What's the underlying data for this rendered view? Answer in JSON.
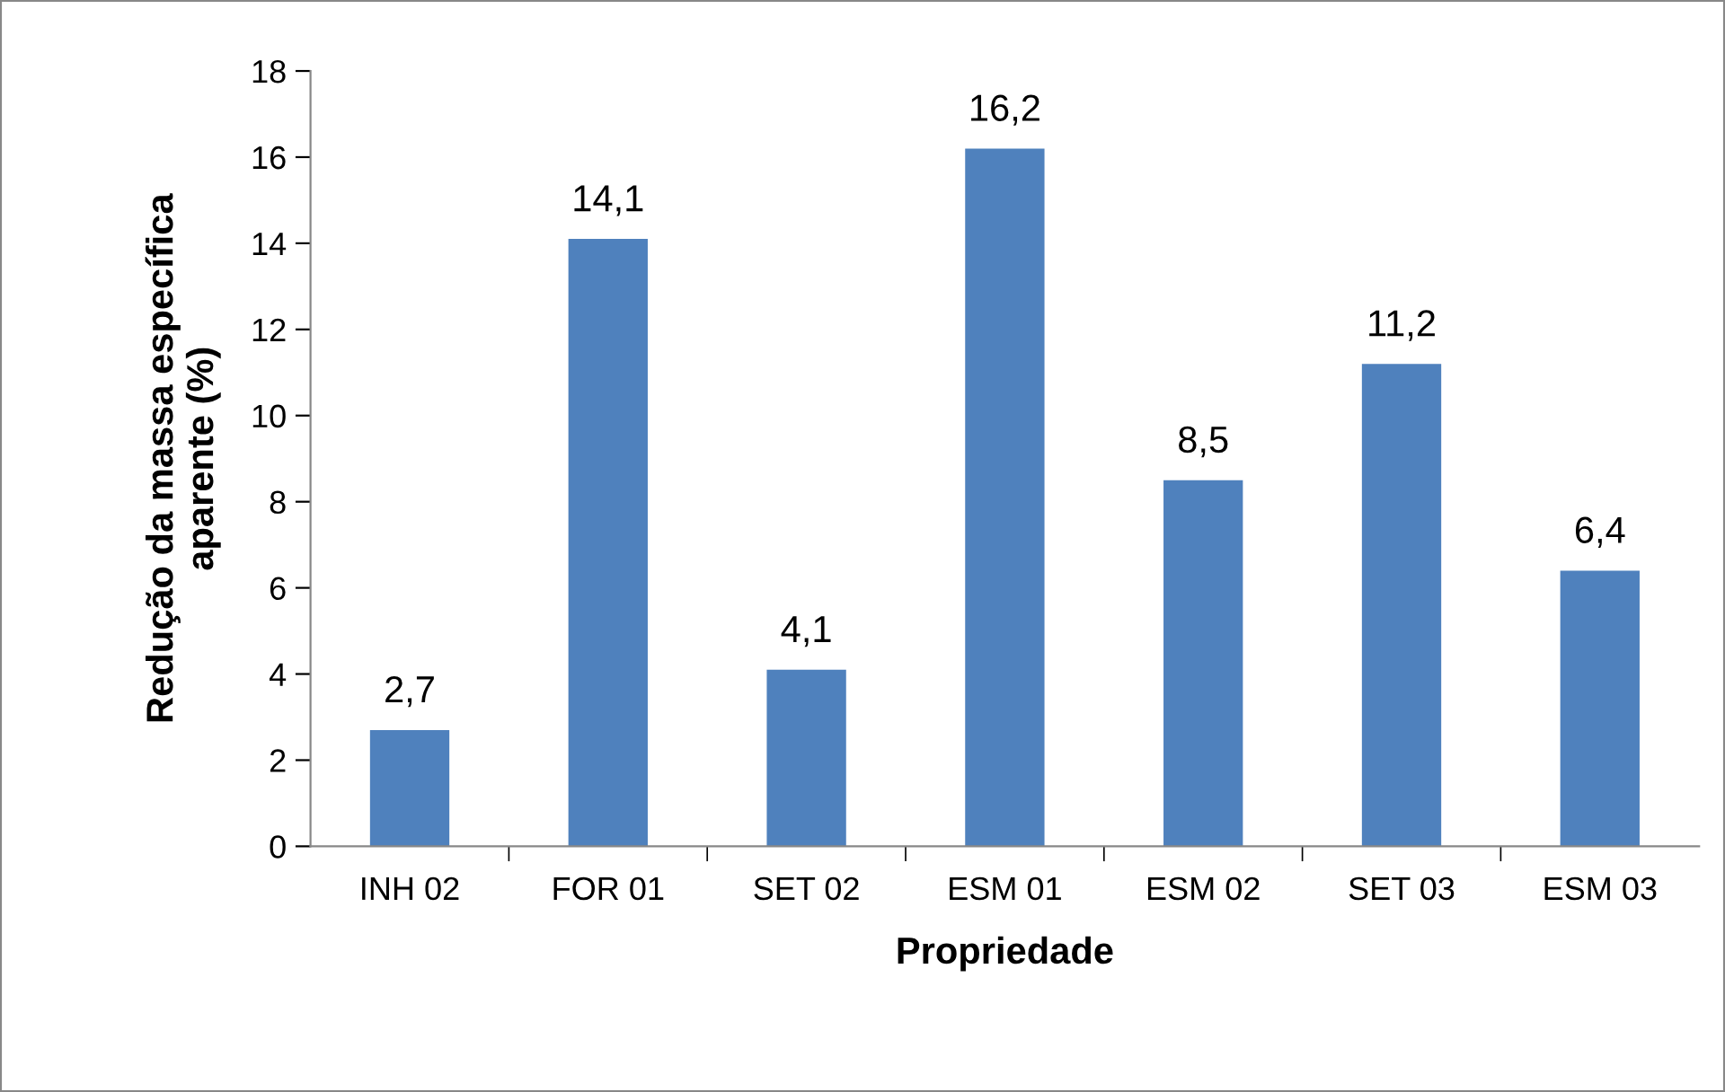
{
  "chart_data": {
    "type": "bar",
    "xlabel": "Propriedade",
    "ylabel": "Redução da massa específica\naparente (%)",
    "categories": [
      "INH 02",
      "FOR 01",
      "SET 02",
      "ESM 01",
      "ESM 02",
      "SET 03",
      "ESM 03"
    ],
    "values": [
      2.7,
      14.1,
      4.1,
      16.2,
      8.5,
      11.2,
      6.4
    ],
    "value_labels": [
      "2,7",
      "14,1",
      "4,1",
      "16,2",
      "8,5",
      "11,2",
      "6,4"
    ],
    "color": "#4f81bd",
    "ylim": [
      0,
      18
    ],
    "yticks": [
      0,
      2,
      4,
      6,
      8,
      10,
      12,
      14,
      16,
      18
    ],
    "grid": false,
    "legend": false
  }
}
